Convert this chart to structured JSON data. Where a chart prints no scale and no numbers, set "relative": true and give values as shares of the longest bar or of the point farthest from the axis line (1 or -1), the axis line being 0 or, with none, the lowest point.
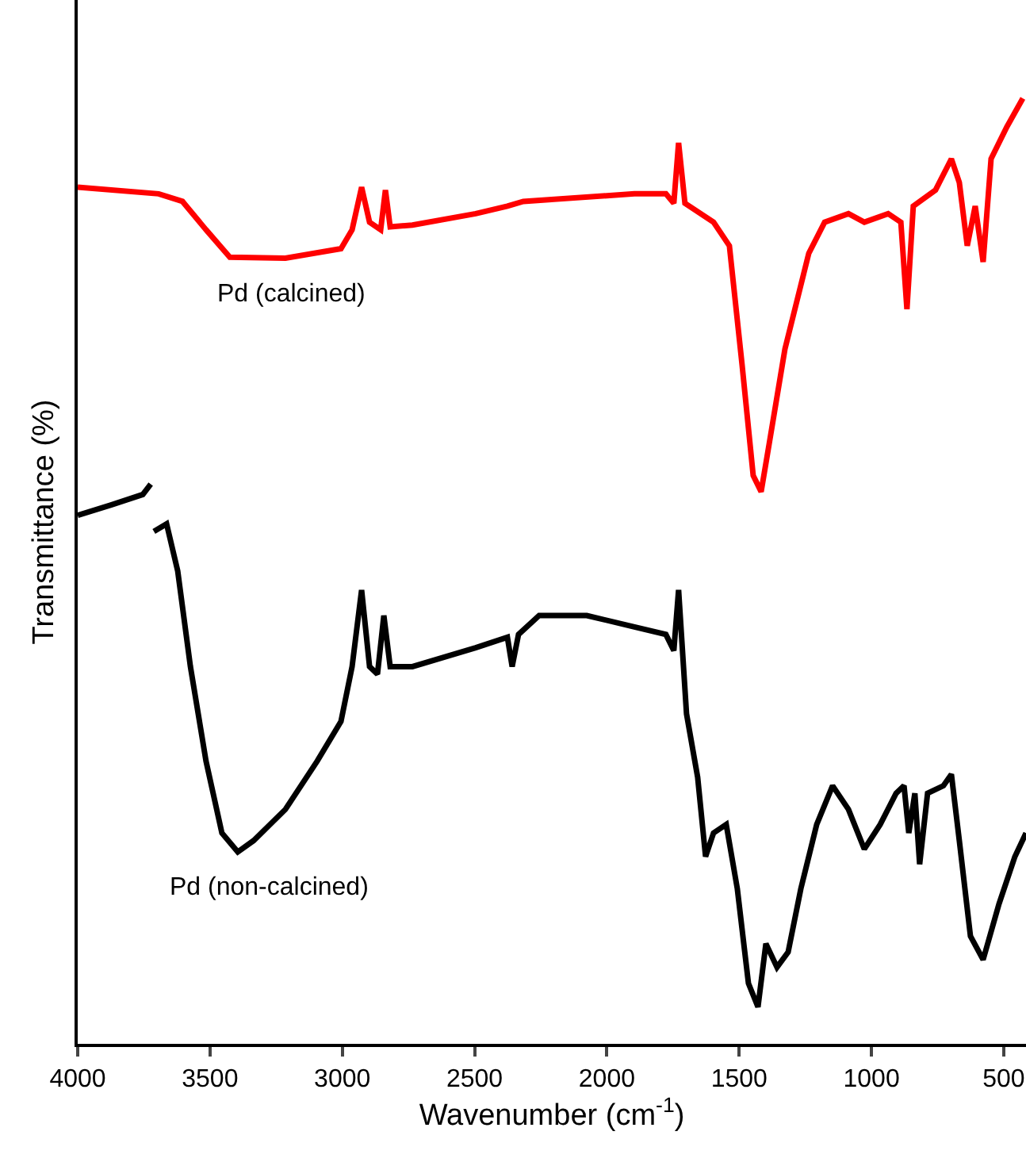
{
  "chart_data": {
    "type": "line",
    "relative": true,
    "xlabel": "Wavenumber (cm$^{-1}$)",
    "ylabel": "Transmittance (%)",
    "xlim": [
      4000,
      416
    ],
    "xticks": [
      4000,
      3500,
      3000,
      2500,
      2000,
      1500,
      1000,
      500
    ],
    "legend": false,
    "marker": "none",
    "line_style": "solid",
    "series": [
      {
        "name": "Pd (calcined)",
        "color": "#ff0000",
        "x": [
          4000,
          3694,
          3604,
          3515,
          3425,
          3215,
          3005,
          2963,
          2927,
          2897,
          2855,
          2837,
          2819,
          2735,
          2496,
          2376,
          2316,
          1896,
          1777,
          1747,
          1729,
          1705,
          1597,
          1537,
          1489,
          1447,
          1417,
          1387,
          1327,
          1237,
          1177,
          1087,
          1027,
          937,
          889,
          866,
          842,
          758,
          698,
          668,
          638,
          608,
          578,
          548,
          488,
          428
        ],
        "values": [
          0.906,
          0.899,
          0.891,
          0.861,
          0.832,
          0.831,
          0.841,
          0.861,
          0.906,
          0.869,
          0.861,
          0.903,
          0.864,
          0.866,
          0.878,
          0.886,
          0.891,
          0.899,
          0.899,
          0.889,
          0.953,
          0.889,
          0.869,
          0.844,
          0.718,
          0.601,
          0.584,
          0.634,
          0.735,
          0.836,
          0.869,
          0.878,
          0.869,
          0.878,
          0.869,
          0.777,
          0.886,
          0.903,
          0.936,
          0.911,
          0.844,
          0.886,
          0.827,
          0.936,
          0.97,
          1.0
        ]
      },
      {
        "name": "Pd (non-calcined)",
        "color": "#000000",
        "x": [
          4000,
          3874,
          3754,
          3724,
          3721,
          3712,
          3664,
          3622,
          3574,
          3515,
          3455,
          3395,
          3335,
          3215,
          3095,
          3005,
          2963,
          2927,
          2897,
          2867,
          2843,
          2819,
          2735,
          2496,
          2376,
          2358,
          2334,
          2256,
          2076,
          1896,
          1777,
          1747,
          1729,
          1699,
          1657,
          1627,
          1597,
          1549,
          1507,
          1465,
          1429,
          1399,
          1357,
          1315,
          1267,
          1207,
          1147,
          1087,
          1027,
          967,
          907,
          877,
          859,
          836,
          818,
          788,
          728,
          698,
          668,
          626,
          578,
          518,
          458,
          416
        ],
        "values": [
          0.559,
          0.57,
          0.581,
          0.592,
          null,
          0.542,
          0.55,
          0.5,
          0.399,
          0.299,
          0.223,
          0.203,
          0.215,
          0.248,
          0.299,
          0.341,
          0.399,
          0.48,
          0.399,
          0.391,
          0.453,
          0.399,
          0.399,
          0.419,
          0.43,
          0.399,
          0.433,
          0.453,
          0.453,
          0.441,
          0.433,
          0.416,
          0.48,
          0.349,
          0.282,
          0.198,
          0.223,
          0.232,
          0.164,
          0.064,
          0.039,
          0.106,
          0.081,
          0.097,
          0.164,
          0.232,
          0.273,
          0.248,
          0.206,
          0.232,
          0.265,
          0.273,
          0.223,
          0.265,
          0.19,
          0.265,
          0.273,
          0.285,
          0.215,
          0.114,
          0.089,
          0.148,
          0.198,
          0.223
        ]
      }
    ]
  }
}
